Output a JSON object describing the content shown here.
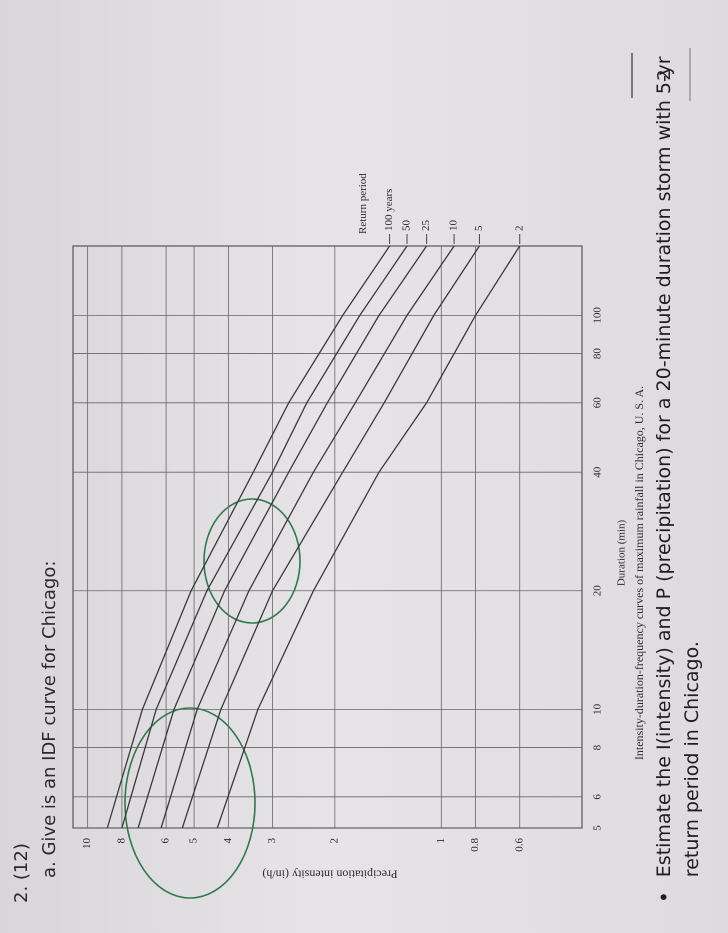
{
  "header": {
    "question": "2. (12)",
    "part_a": "a. Give is an IDF curve for Chicago:",
    "page_number": "2"
  },
  "chart_data": {
    "type": "line",
    "caption": "Intensity-duration-frequency curves of maximum rainfall in Chicago, U. S. A.",
    "x_label": "Duration (min)",
    "y_label": "Precipitation intensity (in/h)",
    "legend_title": "Return period",
    "x": [
      5,
      10,
      20,
      40,
      60,
      100,
      150
    ],
    "series": [
      {
        "name": "100 years",
        "color": "#3a3a3e",
        "values": [
          8.8,
          7.0,
          5.1,
          3.4,
          2.7,
          1.9,
          1.4
        ]
      },
      {
        "name": "50",
        "color": "#3a3a3e",
        "values": [
          8.0,
          6.4,
          4.6,
          3.0,
          2.4,
          1.7,
          1.25
        ]
      },
      {
        "name": "25",
        "color": "#3a3a3e",
        "values": [
          7.2,
          5.7,
          4.1,
          2.7,
          2.1,
          1.5,
          1.1
        ]
      },
      {
        "name": "10",
        "color": "#3a3a3e",
        "values": [
          6.2,
          4.9,
          3.5,
          2.3,
          1.75,
          1.25,
          0.92
        ]
      },
      {
        "name": "5",
        "color": "#3a3a3e",
        "values": [
          5.4,
          4.2,
          3.0,
          1.9,
          1.45,
          1.05,
          0.78
        ]
      },
      {
        "name": "2",
        "color": "#3a3a3e",
        "values": [
          4.3,
          3.3,
          2.3,
          1.5,
          1.1,
          0.8,
          0.6
        ]
      }
    ],
    "xlog": true,
    "ylog": true,
    "grid": true,
    "xlim": [
      5,
      150
    ],
    "xticks": [
      5,
      6,
      8,
      10,
      20,
      40,
      60,
      80,
      100
    ],
    "ylim": [
      0.4,
      11
    ],
    "yticks": [
      0.6,
      0.8,
      1,
      2,
      3,
      4,
      5,
      6,
      8,
      10
    ]
  },
  "bullet": "Estimate the I(intensity) and P (precipitation) for a 20-minute duration storm with 5-yr return period in Chicago."
}
